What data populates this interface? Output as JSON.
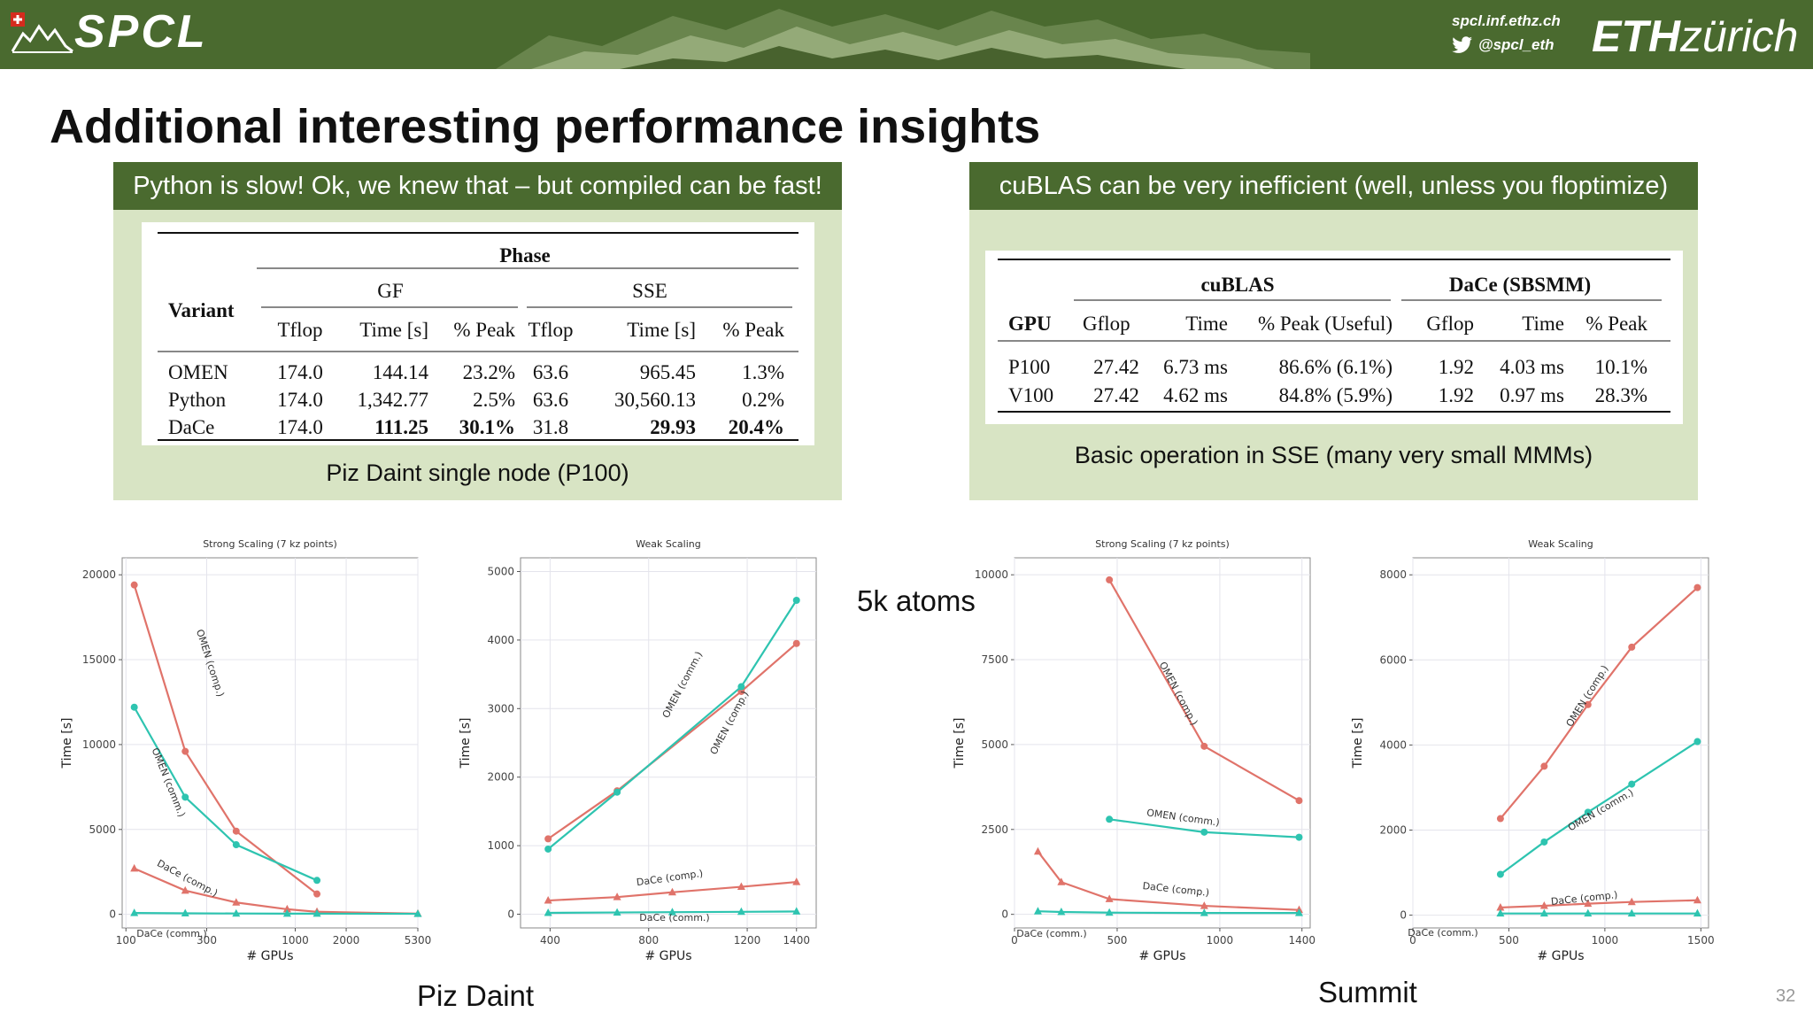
{
  "header": {
    "brand": "SPCL",
    "site": "spcl.inf.ethz.ch",
    "twitter": "@spcl_eth",
    "eth_bold": "ETH",
    "eth_italic": "zürich",
    "icons": [
      "swiss-flag-icon",
      "mountain-logo-icon",
      "twitter-bird-icon"
    ]
  },
  "title": "Additional interesting performance insights",
  "left_panel": {
    "heading": "Python is slow! Ok, we knew that – but compiled can be fast!",
    "caption": "Piz Daint single node (P100)",
    "table": {
      "group": "Phase",
      "variant_label": "Variant",
      "subgroups": [
        "GF",
        "SSE"
      ],
      "columns": [
        "Tflop",
        "Time [s]",
        "% Peak",
        "Tflop",
        "Time [s]",
        "% Peak"
      ],
      "rows": [
        {
          "variant": "OMEN",
          "cells": [
            "174.0",
            "144.14",
            "23.2%",
            "63.6",
            "965.45",
            "1.3%"
          ]
        },
        {
          "variant": "Python",
          "cells": [
            "174.0",
            "1,342.77",
            "2.5%",
            "63.6",
            "30,560.13",
            "0.2%"
          ]
        },
        {
          "variant": "DaCe",
          "cells": [
            "174.0",
            "111.25",
            "30.1%",
            "31.8",
            "29.93",
            "20.4%"
          ]
        }
      ]
    }
  },
  "right_panel": {
    "heading": "cuBLAS can be very inefficient (well, unless you floptimize)",
    "caption": "Basic operation in SSE (many very small MMMs)",
    "table": {
      "groups": [
        "cuBLAS",
        "DaCe (SBSMM)"
      ],
      "gpu_label": "GPU",
      "columns": [
        "Gflop",
        "Time",
        "% Peak (Useful)",
        "Gflop",
        "Time",
        "% Peak"
      ],
      "rows": [
        {
          "gpu": "P100",
          "cells": [
            "27.42",
            "6.73 ms",
            "86.6% (6.1%)",
            "1.92",
            "4.03 ms",
            "10.1%"
          ]
        },
        {
          "gpu": "V100",
          "cells": [
            "27.42",
            "4.62 ms",
            "84.8% (5.9%)",
            "1.92",
            "0.97 ms",
            "28.3%"
          ]
        }
      ]
    }
  },
  "labels": {
    "piz_daint": "Piz Daint",
    "summit": "Summit",
    "atoms": "5k atoms",
    "page_number": "32"
  },
  "chart_data": [
    {
      "type": "line",
      "title": "Strong Scaling (7 kz points)",
      "xlabel": "# GPUs",
      "ylabel": "Time [s]",
      "xscale": "log",
      "xlim": [
        95,
        5300
      ],
      "ylim": [
        -800,
        21000
      ],
      "xticks": [
        100,
        300,
        1000,
        2000,
        5300
      ],
      "yticks": [
        0,
        5000,
        10000,
        15000,
        20000
      ],
      "grid": true,
      "series": [
        {
          "name": "OMEN (comp.)",
          "color": "#e0736a",
          "marker": "circle",
          "x": [
            112,
            224,
            448,
            1344
          ],
          "y": [
            19400,
            9600,
            4900,
            1200
          ]
        },
        {
          "name": "OMEN (comm.)",
          "color": "#2ec4b0",
          "marker": "circle",
          "x": [
            112,
            224,
            448,
            1344
          ],
          "y": [
            12200,
            6900,
            4100,
            2000
          ]
        },
        {
          "name": "DaCe (comp.)",
          "color": "#e0736a",
          "marker": "triangle",
          "x": [
            112,
            224,
            448,
            896,
            1344,
            5300
          ],
          "y": [
            2700,
            1400,
            700,
            300,
            150,
            40
          ]
        },
        {
          "name": "DaCe (comm.)",
          "color": "#2ec4b0",
          "marker": "triangle",
          "x": [
            112,
            224,
            448,
            896,
            1344,
            5300
          ],
          "y": [
            80,
            60,
            50,
            40,
            40,
            30
          ]
        }
      ],
      "annotations": [
        "OMEN (comp.)",
        "OMEN (comm.)",
        "DaCe (comp.)",
        "DaCe (comm.)"
      ]
    },
    {
      "type": "line",
      "title": "Weak Scaling",
      "xlabel": "# GPUs",
      "ylabel": "Time [s]",
      "xlim": [
        280,
        1480
      ],
      "ylim": [
        -200,
        5200
      ],
      "xticks": [
        400,
        800,
        1200,
        1400
      ],
      "yticks": [
        0,
        1000,
        2000,
        3000,
        4000,
        5000
      ],
      "grid": true,
      "series": [
        {
          "name": "OMEN (comp.)",
          "color": "#e0736a",
          "marker": "circle",
          "x": [
            392,
            672,
            1176,
            1400
          ],
          "y": [
            1100,
            1800,
            3250,
            3950
          ]
        },
        {
          "name": "OMEN (comm.)",
          "color": "#2ec4b0",
          "marker": "circle",
          "x": [
            392,
            672,
            1176,
            1400
          ],
          "y": [
            950,
            1780,
            3320,
            4580
          ]
        },
        {
          "name": "DaCe (comp.)",
          "color": "#e0736a",
          "marker": "triangle",
          "x": [
            392,
            672,
            896,
            1176,
            1400
          ],
          "y": [
            200,
            250,
            320,
            400,
            470
          ]
        },
        {
          "name": "DaCe (comm.)",
          "color": "#2ec4b0",
          "marker": "triangle",
          "x": [
            392,
            672,
            896,
            1176,
            1400
          ],
          "y": [
            20,
            25,
            30,
            35,
            40
          ]
        }
      ],
      "annotations": [
        "OMEN (comm.)",
        "OMEN (comp.)",
        "DaCe (comp.)",
        "DaCe (comm.)"
      ]
    },
    {
      "type": "line",
      "title": "Strong Scaling (7 kz points)",
      "xlabel": "# GPUs",
      "ylabel": "Time [s]",
      "xlim": [
        0,
        1440
      ],
      "ylim": [
        -400,
        10500
      ],
      "xticks": [
        0,
        500,
        1000,
        1400
      ],
      "yticks": [
        0,
        2500,
        5000,
        7500,
        10000
      ],
      "grid": true,
      "series": [
        {
          "name": "OMEN (comp.)",
          "color": "#e0736a",
          "marker": "circle",
          "x": [
            462,
            924,
            1386
          ],
          "y": [
            9850,
            4950,
            3350
          ]
        },
        {
          "name": "OMEN (comm.)",
          "color": "#2ec4b0",
          "marker": "circle",
          "x": [
            462,
            924,
            1386
          ],
          "y": [
            2800,
            2420,
            2270
          ]
        },
        {
          "name": "DaCe (comp.)",
          "color": "#e0736a",
          "marker": "triangle",
          "x": [
            114,
            228,
            462,
            924,
            1386
          ],
          "y": [
            1850,
            950,
            450,
            250,
            130
          ]
        },
        {
          "name": "DaCe (comm.)",
          "color": "#2ec4b0",
          "marker": "triangle",
          "x": [
            114,
            228,
            462,
            924,
            1386
          ],
          "y": [
            90,
            70,
            50,
            40,
            40
          ]
        }
      ],
      "annotations": [
        "OMEN (comp.)",
        "OMEN (comm.)",
        "DaCe (comp.)",
        "DaCe (comm.)"
      ]
    },
    {
      "type": "line",
      "title": "Weak Scaling",
      "xlabel": "# GPUs",
      "ylabel": "Time [s]",
      "xlim": [
        0,
        1540
      ],
      "ylim": [
        -300,
        8400
      ],
      "xticks": [
        0,
        500,
        1000,
        1500
      ],
      "yticks": [
        0,
        2000,
        4000,
        6000,
        8000
      ],
      "grid": true,
      "series": [
        {
          "name": "OMEN (comp.)",
          "color": "#e0736a",
          "marker": "circle",
          "x": [
            456,
            684,
            912,
            1140,
            1482
          ],
          "y": [
            2270,
            3500,
            4950,
            6300,
            7700
          ]
        },
        {
          "name": "OMEN (comm.)",
          "color": "#2ec4b0",
          "marker": "circle",
          "x": [
            456,
            684,
            912,
            1140,
            1482
          ],
          "y": [
            960,
            1720,
            2420,
            3080,
            4080
          ]
        },
        {
          "name": "DaCe (comp.)",
          "color": "#e0736a",
          "marker": "triangle",
          "x": [
            456,
            684,
            912,
            1140,
            1482
          ],
          "y": [
            180,
            220,
            270,
            310,
            350
          ]
        },
        {
          "name": "DaCe (comm.)",
          "color": "#2ec4b0",
          "marker": "triangle",
          "x": [
            456,
            684,
            912,
            1140,
            1482
          ],
          "y": [
            40,
            40,
            40,
            40,
            40
          ]
        }
      ],
      "annotations": [
        "OMEN (comp.)",
        "OMEN (comm.)",
        "DaCe (comp.)",
        "DaCe (comm.)"
      ]
    }
  ]
}
